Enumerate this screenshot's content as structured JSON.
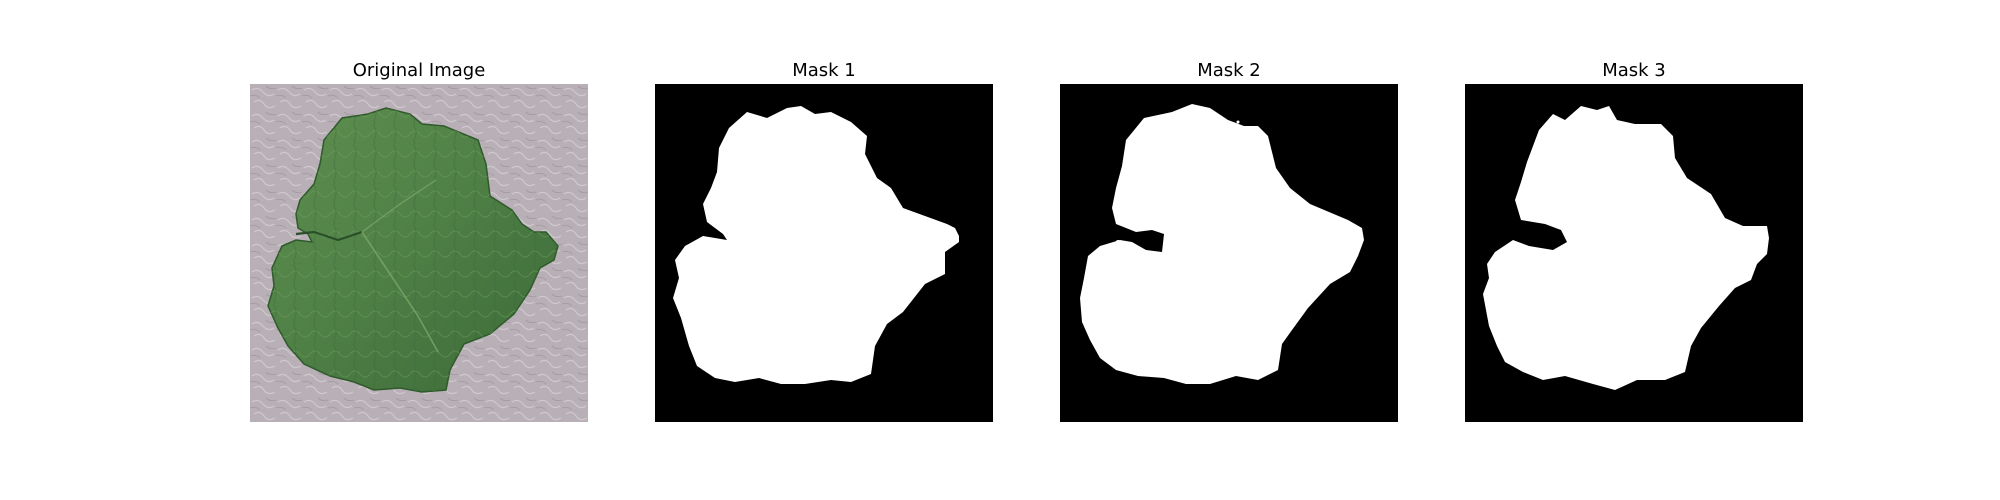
{
  "figure": {
    "panels": [
      {
        "title": "Original Image",
        "kind": "photo"
      },
      {
        "title": "Mask 1",
        "kind": "mask"
      },
      {
        "title": "Mask 2",
        "kind": "mask"
      },
      {
        "title": "Mask 3",
        "kind": "mask"
      }
    ]
  },
  "colors": {
    "background": "#ffffff",
    "mask_foreground": "#ffffff",
    "mask_background": "#000000",
    "leaf": "#4e7f45",
    "leaf_dark": "#2f5a2b",
    "leaf_light": "#6a9a5a",
    "surface": "#b8b0b6"
  }
}
